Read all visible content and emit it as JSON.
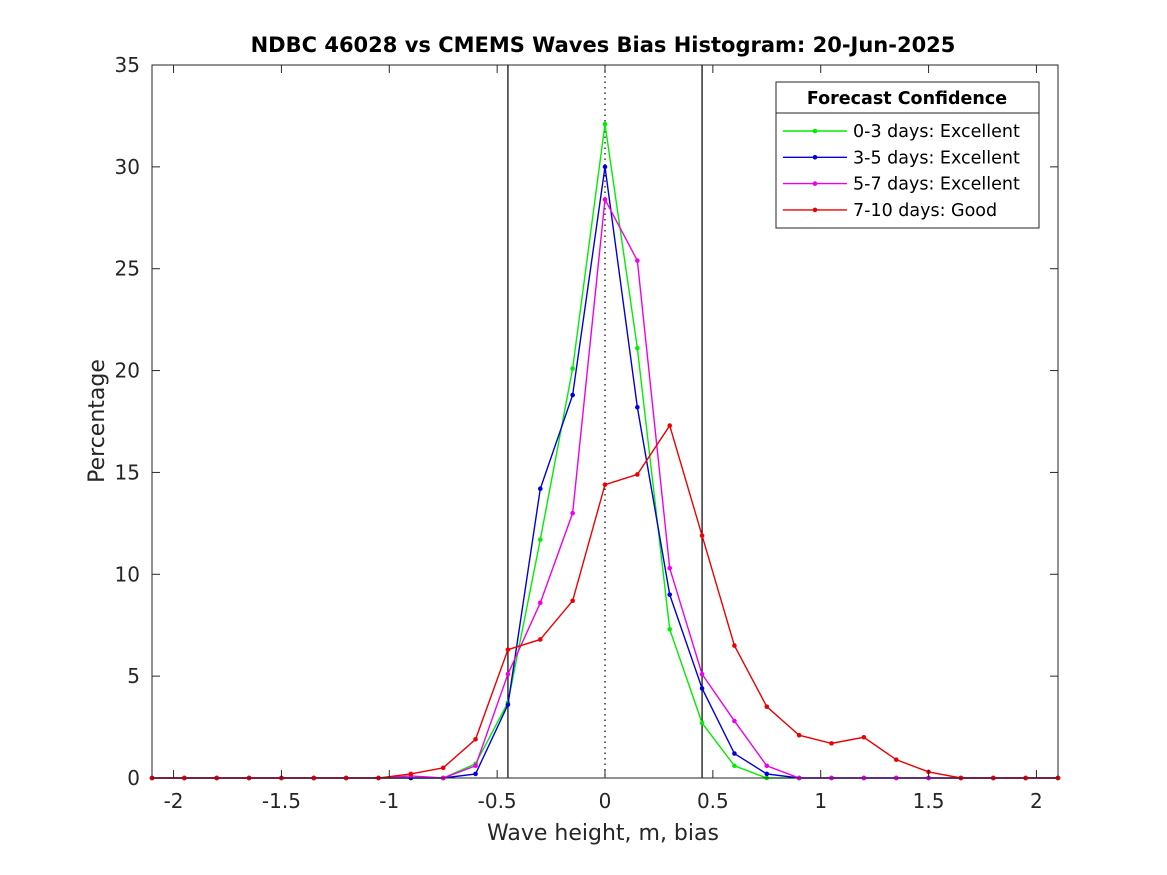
{
  "chart_data": {
    "type": "line",
    "title": "NDBC 46028 vs CMEMS Waves Bias Histogram: 20-Jun-2025",
    "xlabel": "Wave height, m, bias",
    "ylabel": "Percentage",
    "xlim": [
      -2.1,
      2.1
    ],
    "ylim": [
      0,
      35
    ],
    "xticks": [
      -2,
      -1.5,
      -1,
      -0.5,
      0,
      0.5,
      1,
      1.5,
      2
    ],
    "xtick_labels": [
      "-2",
      "-1.5",
      "-1",
      "-0.5",
      "0",
      "0.5",
      "1",
      "1.5",
      "2"
    ],
    "yticks": [
      0,
      5,
      10,
      15,
      20,
      25,
      30,
      35
    ],
    "ytick_labels": [
      "0",
      "5",
      "10",
      "15",
      "20",
      "25",
      "30",
      "35"
    ],
    "grid": false,
    "reference_lines": {
      "solid_x": [
        -0.45,
        0.45
      ],
      "dotted_x": [
        0
      ]
    },
    "legend": {
      "title": "Forecast Confidence",
      "placement": "top-right"
    },
    "x": [
      -2.1,
      -1.95,
      -1.8,
      -1.65,
      -1.5,
      -1.35,
      -1.2,
      -1.05,
      -0.9,
      -0.75,
      -0.6,
      -0.45,
      -0.3,
      -0.15,
      0,
      0.15,
      0.3,
      0.45,
      0.6,
      0.75,
      0.9,
      1.05,
      1.2,
      1.35,
      1.5,
      1.65,
      1.8,
      1.95,
      2.1
    ],
    "series": [
      {
        "name": "0-3 days: Excellent",
        "color": "#00ee00",
        "values": [
          0,
          0,
          0,
          0,
          0,
          0,
          0,
          0,
          0,
          0,
          0.7,
          3.7,
          11.7,
          20.1,
          32.1,
          21.1,
          7.3,
          2.7,
          0.6,
          0,
          0,
          0,
          0,
          0,
          0,
          0,
          0,
          0,
          0
        ]
      },
      {
        "name": "3-5 days: Excellent",
        "color": "#0000dd",
        "values": [
          0,
          0,
          0,
          0,
          0,
          0,
          0,
          0,
          0,
          0,
          0.2,
          3.6,
          14.2,
          18.8,
          30.0,
          18.2,
          9.0,
          4.4,
          1.2,
          0.2,
          0,
          0,
          0,
          0,
          0,
          0,
          0,
          0,
          0
        ]
      },
      {
        "name": "5-7 days: Excellent",
        "color": "#ee00ee",
        "values": [
          0,
          0,
          0,
          0,
          0,
          0,
          0,
          0,
          0.1,
          0,
          0.6,
          5.1,
          8.6,
          13.0,
          28.4,
          25.4,
          10.3,
          5.1,
          2.8,
          0.6,
          0,
          0,
          0,
          0,
          0,
          0,
          0,
          0,
          0
        ]
      },
      {
        "name": "7-10 days: Good",
        "color": "#ee0000",
        "values": [
          0,
          0,
          0,
          0,
          0,
          0,
          0,
          0,
          0.2,
          0.5,
          1.9,
          6.3,
          6.8,
          8.7,
          14.4,
          14.9,
          17.3,
          11.9,
          6.5,
          3.5,
          2.1,
          1.7,
          2.0,
          0.9,
          0.3,
          0,
          0,
          0,
          0
        ]
      }
    ]
  }
}
